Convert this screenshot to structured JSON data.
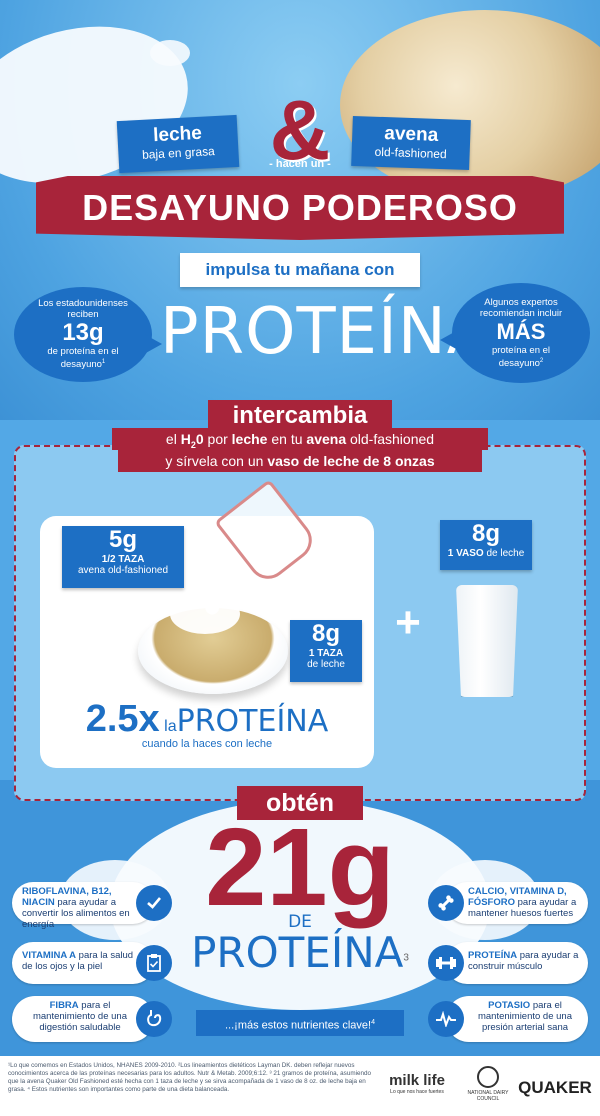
{
  "header": {
    "milk_tag_title": "leche",
    "milk_tag_sub": "baja en grasa",
    "ampersand": "&",
    "oats_tag_title": "avena",
    "oats_tag_sub": "old-fashioned",
    "hacen_un": "- hacen un -",
    "main_title": "DESAYUNO PODEROSO"
  },
  "intro": {
    "boost_text": "impulsa tu mañana con",
    "protein_word": "PROTEÍNA",
    "left_bubble": {
      "line1": "Los estadounidenses reciben",
      "value": "13g",
      "line2": "de proteína en el desayuno",
      "sup": "1"
    },
    "right_bubble": {
      "line1": "Algunos expertos recomiendan incluir",
      "value": "MÁS",
      "line2": "proteína en el desayuno",
      "sup": "2"
    }
  },
  "swap": {
    "title": "intercambia",
    "line1_a": "el",
    "line1_h": "H",
    "line1_sub": "2",
    "line1_b": "0",
    "line1_c": "por",
    "line1_milk": "leche",
    "line1_d": "en tu",
    "line1_oats": "avena",
    "line1_e": "old-fashioned",
    "line2_a": "y sírvela con un",
    "line2_b": "vaso de leche de 8 onzas"
  },
  "comparison": {
    "oats_grams": "5g",
    "oats_amount": "1/2 TAZA",
    "oats_desc": "avena old-fashioned",
    "milk_grams": "8g",
    "milk_amount": "1 TAZA",
    "milk_desc": "de leche",
    "glass_grams": "8g",
    "glass_amount": "1 VASO",
    "glass_desc": "de leche",
    "plus": "+",
    "multiplier": "2.5x",
    "la": "la",
    "protein_word": "PROTEÍNA",
    "caption": "cuando la haces con leche"
  },
  "result": {
    "obten": "obtén",
    "big_number": "21g",
    "de": "DE",
    "protein_word": "PROTEÍNA",
    "sup": "3",
    "more": "...¡más estos nutrientes clave!",
    "more_sup": "4"
  },
  "nutrients_left": [
    {
      "icon": "check-icon",
      "bold": "RIBOFLAVINA, B12, NIACIN",
      "text": "para ayudar a  convertir los alimentos en energía"
    },
    {
      "icon": "clipboard-icon",
      "bold": "VITAMINA A",
      "text": "para la salud de los ojos y la piel"
    },
    {
      "icon": "stomach-icon",
      "bold": "FIBRA",
      "text": "para el mantenimiento de una digestión saludable"
    }
  ],
  "nutrients_right": [
    {
      "icon": "bone-icon",
      "bold": "CALCIO, VITAMINA D, FÓSFORO",
      "text": "para ayudar a mantener huesos fuertes"
    },
    {
      "icon": "dumbbell-icon",
      "bold": "PROTEÍNA",
      "text": "para ayudar a construir músculo"
    },
    {
      "icon": "heartbeat-icon",
      "bold": "POTASIO",
      "text": "para el mantenimiento de una presión arterial sana"
    }
  ],
  "footnote": "¹Lo que comemos en Estados Unidos, NHANES 2009-2010.  ²Los lineamientos dietéticos Layman DK. deben reflejar nuevos conocimientos acerca de las proteínas necesarias para los adultos. Nutr & Metab. 2009;6:12.  ³ 21 gramos de proteína, asumiendo que la avena Quaker Old Fashioned esté hecha con 1 taza de leche y se sirva acompañada de 1 vaso de 8 oz. de leche baja en grasa.  ⁴ Estos nutrientes son importantes como parte de una dieta balanceada.",
  "logos": {
    "milk_life": "milk life",
    "milk_life_tag": "Lo que nos hace fuertes",
    "ndc": "NATIONAL DAIRY COUNCIL",
    "quaker": "QUAKER"
  },
  "colors": {
    "blue": "#1d6fc4",
    "red": "#a8243a",
    "sky": "#5aaee6",
    "cream": "#f7fbfe"
  }
}
